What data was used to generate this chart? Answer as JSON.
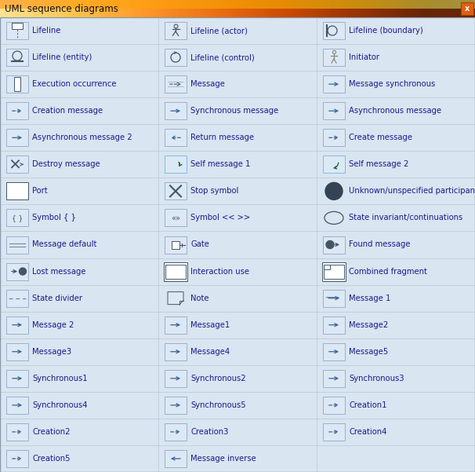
{
  "title": "UML sequence diagrams",
  "bg_color": "#D9E5F0",
  "title_color": "#333333",
  "text_color": "#1a1a8c",
  "icon_bg": "#DDE8F5",
  "icon_border": "#9BB0CC",
  "sep_color": "#B8C8D8",
  "rows": [
    [
      "Lifeline",
      "Lifeline (actor)",
      "Lifeline (boundary)"
    ],
    [
      "Lifeline (entity)",
      "Lifeline (control)",
      "Initiator"
    ],
    [
      "Execution occurrence",
      "Message",
      "Message synchronous"
    ],
    [
      "Creation message",
      "Synchronous message",
      "Asynchronous message"
    ],
    [
      "Asynchronous message 2",
      "Return message",
      "Create message"
    ],
    [
      "Destroy message",
      "Self message 1",
      "Self message 2"
    ],
    [
      "Port",
      "Stop symbol",
      "Unknown/unspecified participant"
    ],
    [
      "Symbol { }",
      "Symbol << >>",
      "State invariant/continuations"
    ],
    [
      "Message default",
      "Gate",
      "Found message"
    ],
    [
      "Lost message",
      "Interaction use",
      "Combined fragment"
    ],
    [
      "State divider",
      "Note",
      "Message 1"
    ],
    [
      "Message 2",
      "Message1",
      "Message2"
    ],
    [
      "Message3",
      "Message4",
      "Message5"
    ],
    [
      "Synchronous1",
      "Synchronous2",
      "Synchronous3"
    ],
    [
      "Synchronous4",
      "Synchronous5",
      "Creation1"
    ],
    [
      "Creation2",
      "Creation3",
      "Creation4"
    ],
    [
      "Creation5",
      "Message inverse",
      ""
    ]
  ],
  "font_size": 7.2,
  "title_font_size": 8.5
}
